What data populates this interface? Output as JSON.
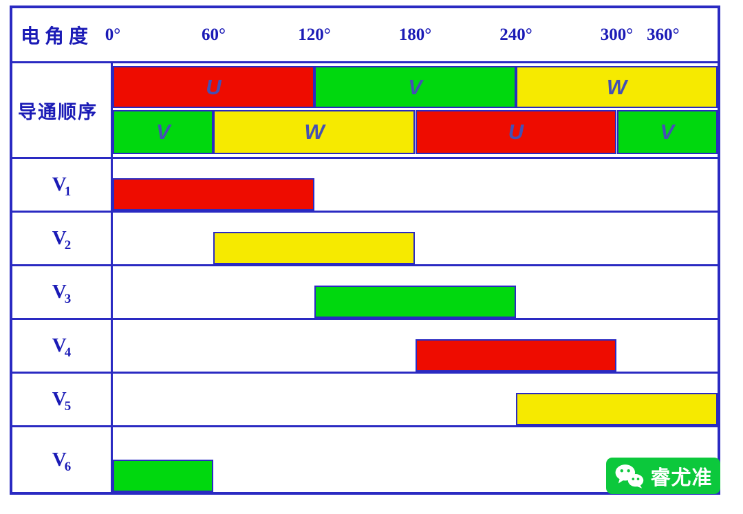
{
  "colors": {
    "red": "#ee0c00",
    "green": "#00d80e",
    "yellow": "#f6ea00",
    "grid_blue": "#2a2ac2",
    "label_blue": "#1b1bb6",
    "phase_letter_blue": "#4450b4",
    "watermark_green": "#0cc83c",
    "watermark_text": "#ffffff"
  },
  "axis": {
    "min_deg": 0,
    "max_deg": 360,
    "step_deg": 60
  },
  "header": {
    "row_label": "电角度",
    "ticks": [
      {
        "label": "0°",
        "angle": 0
      },
      {
        "label": "60°",
        "angle": 60
      },
      {
        "label": "120°",
        "angle": 120
      },
      {
        "label": "180°",
        "angle": 180
      },
      {
        "label": "240°",
        "angle": 240
      },
      {
        "label": "300°",
        "angle": 300
      },
      {
        "label": "360°",
        "angle": 360
      }
    ]
  },
  "conduction": {
    "row_label": "导通顺序",
    "upper_segments": [
      {
        "label": "U",
        "color": "red",
        "start_deg": 0,
        "end_deg": 120
      },
      {
        "label": "V",
        "color": "green",
        "start_deg": 120,
        "end_deg": 240
      },
      {
        "label": "W",
        "color": "yellow",
        "start_deg": 240,
        "end_deg": 360
      }
    ],
    "lower_segments": [
      {
        "label": "V",
        "color": "green",
        "start_deg": 0,
        "end_deg": 60
      },
      {
        "label": "W",
        "color": "yellow",
        "start_deg": 60,
        "end_deg": 180
      },
      {
        "label": "U",
        "color": "red",
        "start_deg": 180,
        "end_deg": 300
      },
      {
        "label": "V",
        "color": "green",
        "start_deg": 300,
        "end_deg": 360
      }
    ]
  },
  "switches": [
    {
      "base": "V",
      "sub": "1",
      "bars": [
        {
          "color": "red",
          "start_deg": 0,
          "end_deg": 120
        }
      ]
    },
    {
      "base": "V",
      "sub": "2",
      "bars": [
        {
          "color": "yellow",
          "start_deg": 60,
          "end_deg": 180
        }
      ]
    },
    {
      "base": "V",
      "sub": "3",
      "bars": [
        {
          "color": "green",
          "start_deg": 120,
          "end_deg": 240
        }
      ]
    },
    {
      "base": "V",
      "sub": "4",
      "bars": [
        {
          "color": "red",
          "start_deg": 180,
          "end_deg": 300
        }
      ]
    },
    {
      "base": "V",
      "sub": "5",
      "bars": [
        {
          "color": "yellow",
          "start_deg": 240,
          "end_deg": 360
        }
      ]
    },
    {
      "base": "V",
      "sub": "6",
      "bars": [
        {
          "color": "green",
          "start_deg": 0,
          "end_deg": 60
        },
        {
          "color": "green",
          "start_deg": 300,
          "end_deg": 360
        }
      ]
    }
  ],
  "watermark": {
    "icon": "wechat-icon",
    "text": "睿尤准"
  }
}
